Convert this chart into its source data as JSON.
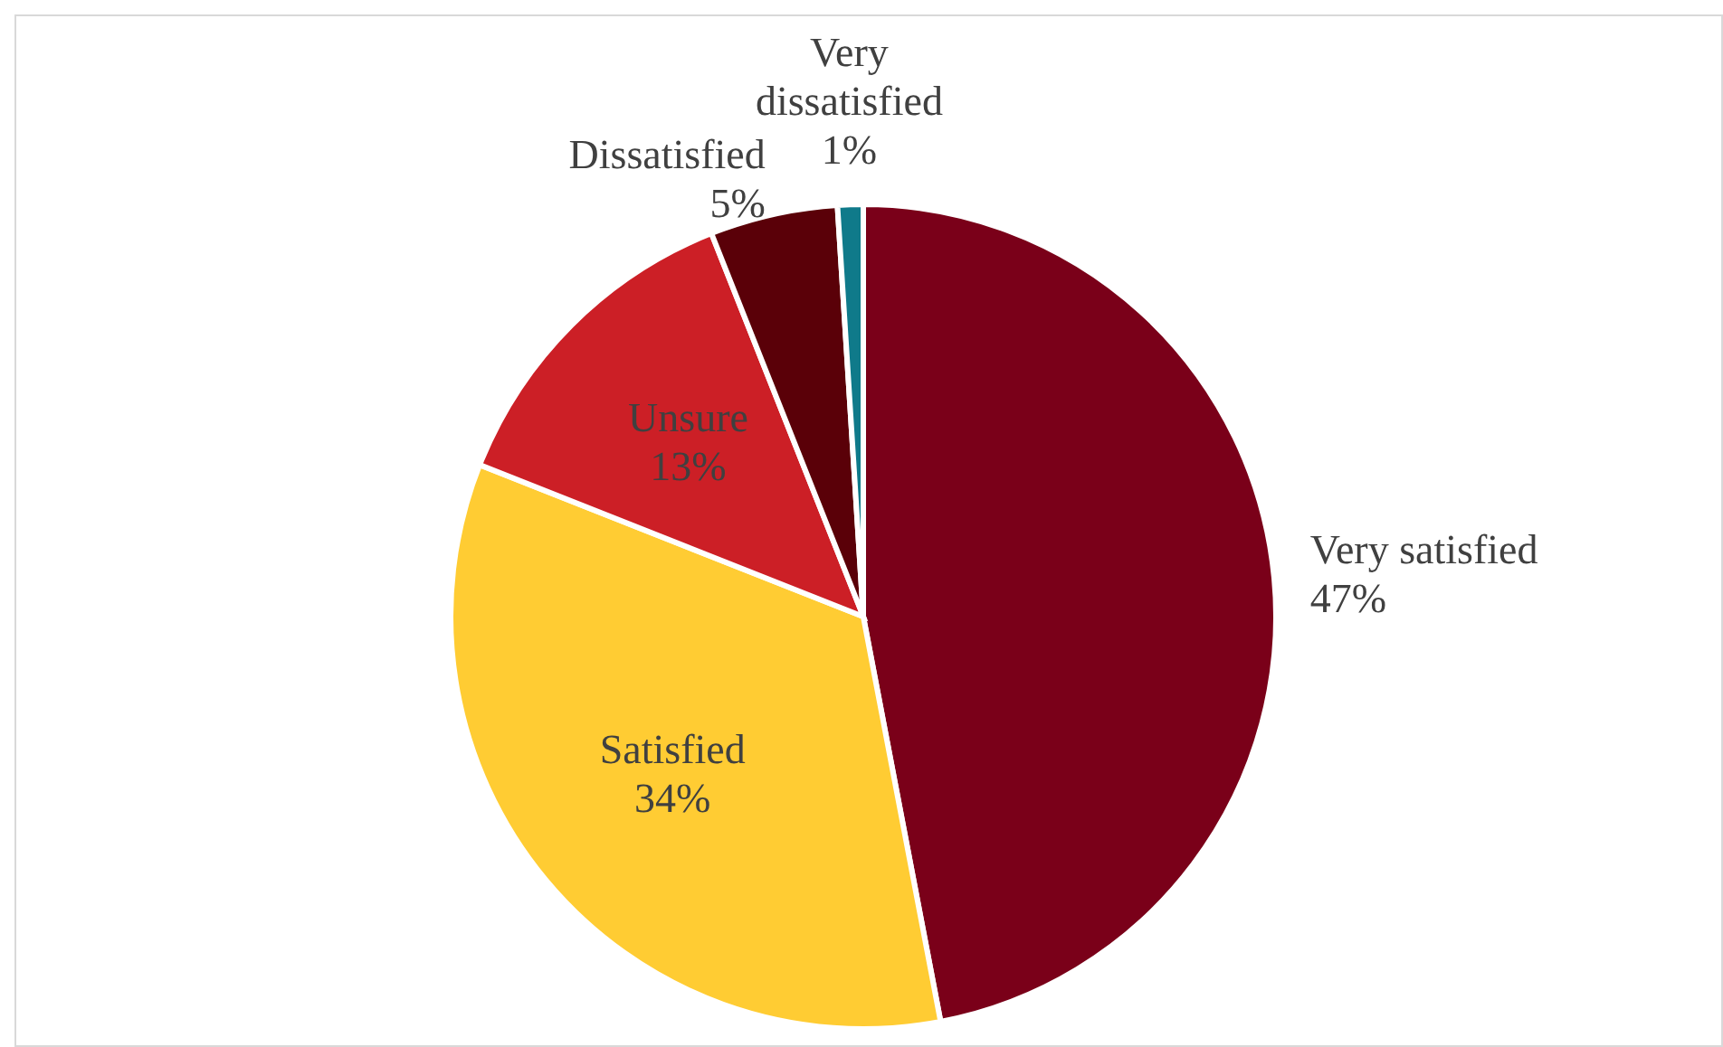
{
  "chart_data": {
    "type": "pie",
    "categories": [
      "Very satisfied",
      "Satisfied",
      "Unsure",
      "Dissatisfied",
      "Very dissatisfied"
    ],
    "values": [
      47,
      34,
      13,
      5,
      1
    ],
    "value_labels": [
      "47%",
      "34%",
      "13%",
      "5%",
      "1%"
    ],
    "colors": [
      "#7a0019",
      "#ffcc33",
      "#cc1f26",
      "#5a0008",
      "#0f7a8a"
    ]
  }
}
